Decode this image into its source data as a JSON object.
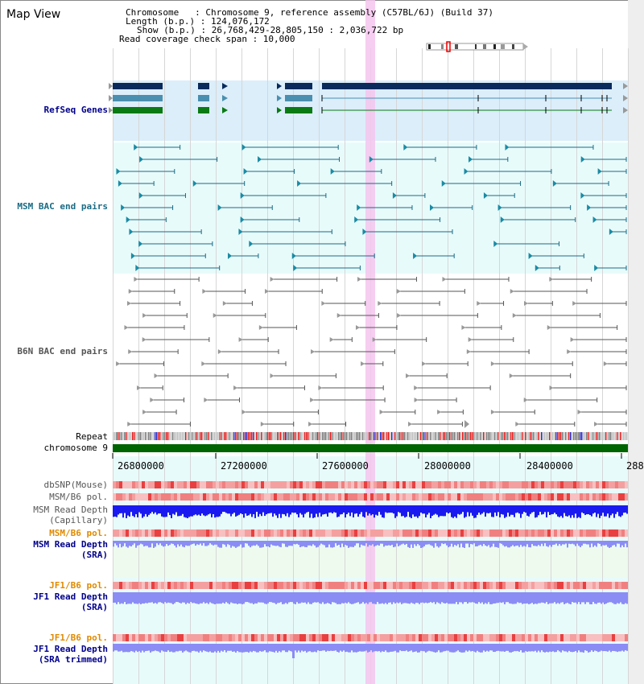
{
  "page": {
    "title": "Map View"
  },
  "info": {
    "chromosome_line": "Chromosome   : Chromosome 9, reference assembly (C57BL/6J) (Build 37)",
    "length_line": "Length (b.p.) : 124,076,172",
    "show_line": "Show (b.p.) : 26,768,429-28,805,150 : 2,036,722 bp",
    "span_line": "Read coverage check span : 10,000"
  },
  "tracks": {
    "refseq": "RefSeq Genes",
    "msm_bac": "MSM BAC end pairs",
    "b6n_bac": "B6N BAC end pairs",
    "repeat": "Repeat",
    "chromosome": "chromosome 9",
    "dbsnp": "dbSNP(Mouse)",
    "msm_b6_pol_1": "MSM/B6 pol.",
    "msm_depth_cap_1": "MSM Read Depth",
    "msm_depth_cap_2": "(Capillary)",
    "msm_b6_pol_2": "MSM/B6 pol.",
    "msm_depth_sra_1": "MSM Read Depth",
    "msm_depth_sra_2": "(SRA)",
    "jf1_b6_pol_1": "JF1/B6 pol.",
    "jf1_depth_sra_1": "JF1 Read Depth",
    "jf1_depth_sra_2": "(SRA)",
    "jf1_b6_pol_2": "JF1/B6 pol.",
    "jf1_depth_trim_1": "JF1 Read Depth",
    "jf1_depth_trim_2": "(SRA trimmed)"
  },
  "axis": {
    "ticks": [
      "26800000",
      "27200000",
      "27600000",
      "28000000",
      "28400000",
      "288"
    ]
  },
  "colors": {
    "label_blue": "#00008b",
    "label_teal": "#1a6b84",
    "label_orange": "#e08a00",
    "gene_navy": "#0a2a5c",
    "gene_teal": "#4a8fb0",
    "gene_green": "#0a7a14",
    "chrom_bar": "#006400",
    "depth_blue": "#1a1af0",
    "depth_light": "#8c8cf5",
    "highlight": "#f5c6ef"
  }
}
